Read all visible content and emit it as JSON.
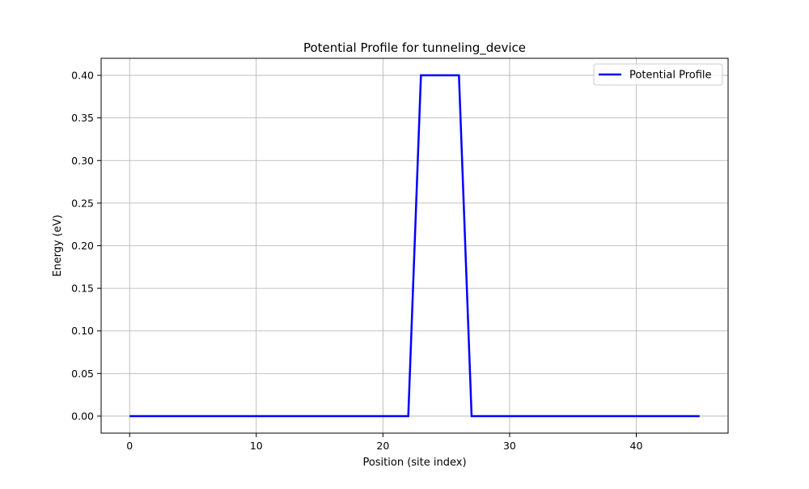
{
  "chart_data": {
    "type": "line",
    "title": "Potential Profile for tunneling_device",
    "xlabel": "Position (site index)",
    "ylabel": "Energy (eV)",
    "xlim": [
      -2.25,
      47.25
    ],
    "ylim": [
      -0.02,
      0.42
    ],
    "x_ticks": [
      0,
      10,
      20,
      30,
      40
    ],
    "x_tick_labels": [
      "0",
      "10",
      "20",
      "30",
      "40"
    ],
    "y_ticks": [
      0.0,
      0.05,
      0.1,
      0.15,
      0.2,
      0.25,
      0.3,
      0.35,
      0.4
    ],
    "y_tick_labels": [
      "0.00",
      "0.05",
      "0.10",
      "0.15",
      "0.20",
      "0.25",
      "0.30",
      "0.35",
      "0.40"
    ],
    "grid": true,
    "legend_position": "top-right",
    "series": [
      {
        "name": "Potential Profile",
        "color": "#0000ff",
        "x": [
          0,
          1,
          2,
          3,
          4,
          5,
          6,
          7,
          8,
          9,
          10,
          11,
          12,
          13,
          14,
          15,
          16,
          17,
          18,
          19,
          20,
          21,
          22,
          23,
          24,
          25,
          26,
          27,
          28,
          29,
          30,
          31,
          32,
          33,
          34,
          35,
          36,
          37,
          38,
          39,
          40,
          41,
          42,
          43,
          44,
          45
        ],
        "y": [
          0,
          0,
          0,
          0,
          0,
          0,
          0,
          0,
          0,
          0,
          0,
          0,
          0,
          0,
          0,
          0,
          0,
          0,
          0,
          0,
          0,
          0,
          0,
          0.4,
          0.4,
          0.4,
          0.4,
          0,
          0,
          0,
          0,
          0,
          0,
          0,
          0,
          0,
          0,
          0,
          0,
          0,
          0,
          0,
          0,
          0,
          0,
          0
        ]
      }
    ]
  }
}
